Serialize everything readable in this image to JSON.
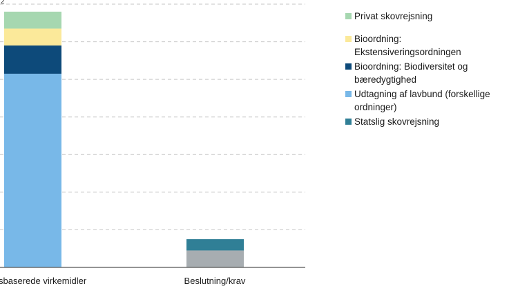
{
  "chart_data": {
    "type": "bar",
    "stacked": true,
    "categories": [
      "sbaserede virkemidler",
      "Beslutning/krav"
    ],
    "top_tick_fragment": "2",
    "series": [
      {
        "name": "Statslig skovrejsning",
        "values": [
          0,
          0.3
        ]
      },
      {
        "name": "Udtagning af lavbund (forskellige ordninger)",
        "values": [
          5.15,
          0
        ]
      },
      {
        "name": "Bioordning: Biodiversitet og bæredygtighed",
        "values": [
          0.75,
          0
        ]
      },
      {
        "name": "Bioordning: Ekstensiveringsordningen",
        "values": [
          0.45,
          0
        ]
      },
      {
        "name": "Privat skovrejsning",
        "values": [
          0.45,
          0
        ]
      }
    ],
    "other_segment": {
      "category_index": 1,
      "value": 0.45
    },
    "ylim": [
      0,
      7
    ],
    "grid": true,
    "legend_position": "right",
    "colors": {
      "Privat skovrejsning": "#a6d7b0",
      "Bioordning: Ekstensiveringsordningen": "#fbe99a",
      "Bioordning: Biodiversitet og bæredygtighed": "#0d4a7a",
      "Udtagning af lavbund (forskellige ordninger)": "#78b8e8",
      "Statslig skovrejsning": "#307f96",
      "other": "#a7adb1",
      "grid": "#c6c6c6",
      "axis": "#555555"
    }
  },
  "legend": {
    "items": [
      {
        "label": "Privat skovrejsning",
        "color": "#a6d7b0",
        "spaced": false
      },
      {
        "label": "Bioordning: Ekstensiveringsordningen",
        "color": "#fbe99a",
        "spaced": true
      },
      {
        "label": "Bioordning: Biodiversitet og bæredygtighed",
        "color": "#0d4a7a",
        "spaced": false
      },
      {
        "label": "Udtagning af lavbund (forskellige ordninger)",
        "color": "#78b8e8",
        "spaced": false
      },
      {
        "label": "Statslig skovrejsning",
        "color": "#307f96",
        "spaced": false
      }
    ]
  }
}
